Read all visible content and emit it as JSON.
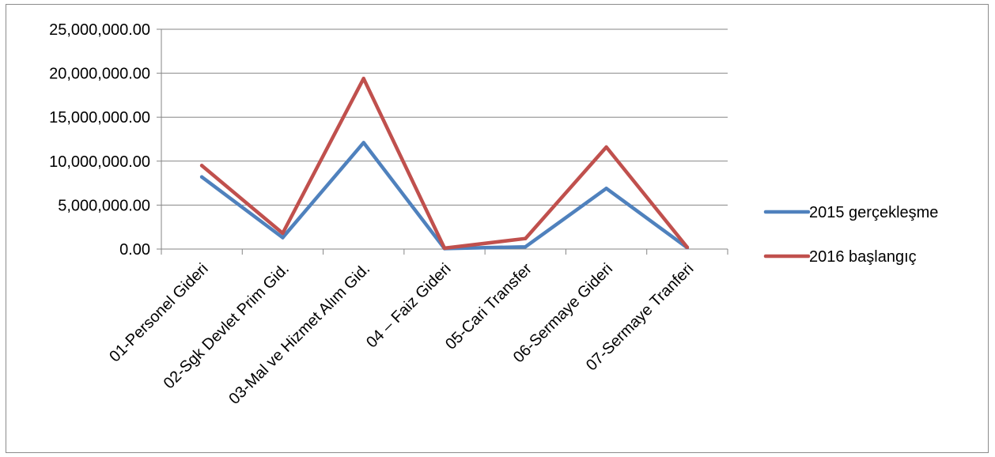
{
  "chart_data": {
    "type": "line",
    "title": "",
    "xlabel": "",
    "ylabel": "",
    "categories": [
      "01-Personel Gideri",
      "02-Sgk Devlet Prim Gid.",
      "03-Mal ve Hizmet Alım Gid.",
      "04 – Faiz Gideri",
      "05-Cari Transfer",
      "06-Sermaye Gideri",
      "07-Sermaye Tranferi"
    ],
    "series": [
      {
        "name": "2015 gerçekleşme",
        "color": "#4f81bd",
        "values": [
          8200000,
          1300000,
          12100000,
          50000,
          250000,
          6900000,
          150000
        ]
      },
      {
        "name": "2016 başlangıç",
        "color": "#c0504d",
        "values": [
          9500000,
          1800000,
          19400000,
          100000,
          1200000,
          11600000,
          200000
        ]
      }
    ],
    "ylim": [
      0,
      25000000
    ],
    "yticks": [
      0,
      5000000,
      10000000,
      15000000,
      20000000,
      25000000
    ],
    "ytick_labels": [
      "0.00",
      "5,000,000.00",
      "10,000,000.00",
      "15,000,000.00",
      "20,000,000.00",
      "25,000,000.00"
    ],
    "grid": true,
    "legend_position": "right",
    "colors": {
      "grid": "#868686",
      "axis": "#868686",
      "frame": "#8c8c8c"
    }
  }
}
